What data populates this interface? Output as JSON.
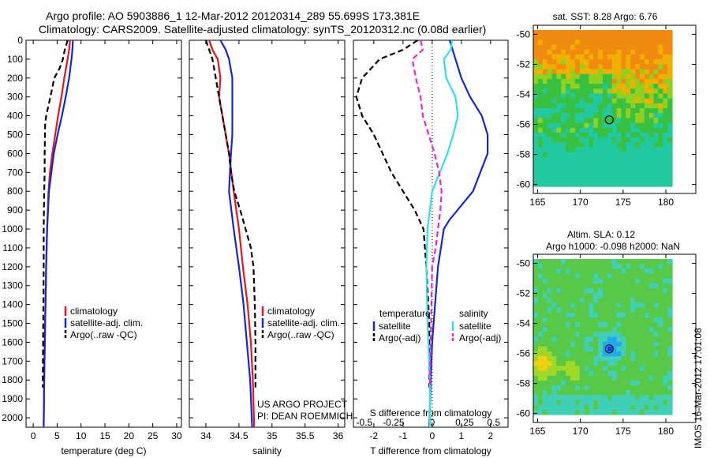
{
  "title_lines": [
    "Argo profile: AO 5903886_1 12-Mar-2012 20120314_289 55.699S 173.381E",
    "Climatology: CARS2009. Satellite-adjusted climatology: synTS_20120312.nc (0.08d earlier)"
  ],
  "colors": {
    "climatology": "#e8141e",
    "satellite": "#1428d2",
    "argo": "#000000",
    "s_sat": "#30e0e8",
    "s_argo": "#f020e0"
  },
  "chart_data": [
    {
      "type": "line",
      "id": "temperature",
      "xlabel": "temperature (deg C)",
      "xlim": [
        -1.5,
        31
      ],
      "ylim": [
        2050,
        0
      ],
      "xticks": [
        0,
        5,
        10,
        15,
        20,
        25,
        30
      ],
      "yticks": [
        0,
        100,
        200,
        300,
        400,
        500,
        600,
        700,
        800,
        900,
        1000,
        1100,
        1200,
        1300,
        1400,
        1500,
        1600,
        1700,
        1800,
        1900,
        2000
      ],
      "series": [
        {
          "name": "climatology",
          "color_key": "climatology",
          "dash": false,
          "depth": [
            0,
            50,
            100,
            200,
            300,
            400,
            500,
            600,
            700,
            800,
            1000,
            1200,
            1500,
            1800,
            2050
          ],
          "values": [
            7.7,
            7.5,
            7.2,
            6.5,
            5.9,
            5.2,
            4.6,
            4.0,
            3.5,
            3.2,
            2.9,
            2.7,
            2.5,
            2.3,
            2.2
          ]
        },
        {
          "name": "satellite-adj. clim.",
          "color_key": "satellite",
          "dash": false,
          "depth": [
            0,
            50,
            100,
            200,
            300,
            400,
            500,
            600,
            700,
            800,
            1000,
            1200,
            1500,
            1800,
            2050
          ],
          "values": [
            8.3,
            8.2,
            8.0,
            7.5,
            6.8,
            6.0,
            5.1,
            4.3,
            3.8,
            3.3,
            2.9,
            2.7,
            2.5,
            2.3,
            2.2
          ]
        },
        {
          "name": "Argo(..raw -QC)",
          "color_key": "argo",
          "dash": true,
          "depth": [
            0,
            50,
            100,
            150,
            200,
            300,
            400,
            450,
            600,
            700,
            800,
            1000,
            1200,
            1500,
            1840
          ],
          "values": [
            7.2,
            6.6,
            6.2,
            5.5,
            4.4,
            3.6,
            2.7,
            2.5,
            2.4,
            2.4,
            2.3,
            2.2,
            2.2,
            2.1,
            2.0
          ]
        }
      ],
      "legend": [
        "climatology",
        "satellite-adj. clim.",
        "Argo(..raw -QC)"
      ]
    },
    {
      "type": "line",
      "id": "salinity",
      "xlabel": "salinity",
      "xlim": [
        33.75,
        36.1
      ],
      "ylim": [
        2050,
        0
      ],
      "xticks": [
        34,
        34.5,
        35,
        35.5,
        36
      ],
      "series": [
        {
          "name": "climatology",
          "color_key": "climatology",
          "dash": false,
          "depth": [
            0,
            50,
            100,
            200,
            300,
            400,
            500,
            600,
            800,
            1000,
            1200,
            1400,
            1600,
            1800,
            2050
          ],
          "values": [
            34.05,
            34.1,
            34.18,
            34.22,
            34.2,
            34.25,
            34.3,
            34.35,
            34.42,
            34.5,
            34.56,
            34.63,
            34.68,
            34.71,
            34.73
          ]
        },
        {
          "name": "satellite-adj. clim.",
          "color_key": "satellite",
          "dash": false,
          "depth": [
            0,
            50,
            100,
            200,
            300,
            400,
            500,
            600,
            800,
            1000,
            1200,
            1400,
            1600,
            1800,
            2050
          ],
          "values": [
            34.22,
            34.3,
            34.35,
            34.4,
            34.4,
            34.4,
            34.4,
            34.38,
            34.35,
            34.42,
            34.5,
            34.57,
            34.62,
            34.67,
            34.7
          ]
        },
        {
          "name": "Argo(..raw -QC)",
          "color_key": "argo",
          "dash": true,
          "depth": [
            0,
            50,
            100,
            200,
            300,
            400,
            500,
            600,
            700,
            800,
            900,
            1000,
            1100,
            1200,
            1400,
            1600,
            1840
          ],
          "values": [
            34.0,
            34.05,
            34.1,
            34.15,
            34.2,
            34.25,
            34.3,
            34.35,
            34.38,
            34.43,
            34.52,
            34.6,
            34.68,
            34.72,
            34.74,
            34.75,
            34.75
          ]
        }
      ],
      "legend": [
        "climatology",
        "satellite-adj. clim.",
        "Argo(..raw -QC)"
      ],
      "note_lines": [
        "US ARGO PROJECT",
        "PI: DEAN ROEMMICH"
      ]
    },
    {
      "type": "line",
      "id": "difference",
      "xlabel": "T difference from climatology",
      "xlim": [
        -2.7,
        2.6
      ],
      "ylim": [
        2050,
        0
      ],
      "xticks": [
        -2,
        -1,
        0,
        1,
        2
      ],
      "top_axis_label": "S difference from climatology",
      "s_xticks": [
        "-0.5",
        "-0.25",
        "0",
        "0.25",
        "0.5"
      ],
      "series": [
        {
          "name": "temperature satellite",
          "color_key": "satellite",
          "dash": false,
          "depth": [
            0,
            50,
            100,
            200,
            300,
            400,
            500,
            600,
            800,
            950,
            1000,
            1100,
            1200,
            1400,
            1600,
            1800,
            2050
          ],
          "values": [
            0.6,
            0.7,
            0.8,
            1.0,
            1.3,
            1.7,
            1.9,
            1.9,
            1.4,
            0.6,
            0.4,
            0.3,
            0.2,
            0.1,
            0.0,
            -0.05,
            -0.1
          ]
        },
        {
          "name": "temperature Argo(-adj)",
          "color_key": "argo",
          "dash": true,
          "depth": [
            0,
            50,
            100,
            200,
            300,
            400,
            500,
            600,
            700,
            800,
            900,
            1000,
            1200,
            1500,
            1840
          ],
          "values": [
            -0.5,
            -1.0,
            -1.8,
            -2.4,
            -2.6,
            -2.4,
            -2.0,
            -1.7,
            -1.4,
            -1.0,
            -0.6,
            -0.3,
            -0.2,
            -0.1,
            -0.1
          ]
        },
        {
          "name": "salinity satellite",
          "color_key": "s_sat",
          "dash": false,
          "depth": [
            0,
            50,
            100,
            200,
            300,
            400,
            500,
            600,
            800,
            1000,
            1200,
            1500,
            1800,
            2050
          ],
          "values": [
            0.17,
            0.16,
            0.1,
            0.12,
            0.2,
            0.22,
            0.18,
            0.13,
            0.0,
            -0.04,
            -0.05,
            -0.04,
            -0.02,
            -0.02
          ]
        },
        {
          "name": "salinity Argo(-adj)",
          "color_key": "s_argo",
          "dash": true,
          "depth": [
            0,
            50,
            100,
            200,
            300,
            400,
            500,
            600,
            700,
            800,
            900,
            1000,
            1100,
            1200,
            1500,
            1840
          ],
          "values": [
            -0.1,
            -0.08,
            -0.17,
            -0.14,
            -0.1,
            -0.08,
            -0.03,
            0.02,
            0.06,
            0.08,
            0.07,
            0.05,
            0.03,
            0.0,
            -0.01,
            -0.02
          ]
        }
      ],
      "legend_headers": [
        "temperature",
        "salinity"
      ],
      "legend_left": [
        "satellite",
        "Argo(-adj)"
      ],
      "legend_right": [
        "satellite",
        "Argo(-adj)"
      ]
    },
    {
      "type": "heatmap",
      "id": "sst_map",
      "title": "sat. SST: 8.28 Argo: 6.76",
      "xlim": [
        164.5,
        183.5
      ],
      "ylim": [
        -60.6,
        -49.4
      ],
      "xticks": [
        165,
        170,
        175,
        180
      ],
      "yticks": [
        -50,
        -52,
        -54,
        -56,
        -58,
        -60
      ],
      "profile_marker": {
        "lon": 173.381,
        "lat": -55.699
      }
    },
    {
      "type": "heatmap",
      "id": "sla_map",
      "title_lines": [
        "Altim. SLA: 0.12",
        "Argo h1000: -0.098 h2000: NaN"
      ],
      "xlim": [
        164.5,
        183.5
      ],
      "ylim": [
        -60.6,
        -49.4
      ],
      "xticks": [
        165,
        170,
        175,
        180
      ],
      "yticks": [
        -50,
        -52,
        -54,
        -56,
        -58,
        -60
      ],
      "profile_marker": {
        "lon": 173.381,
        "lat": -55.699
      }
    }
  ],
  "stamp": "IMOS 16-Mar-2012 17:01:08"
}
